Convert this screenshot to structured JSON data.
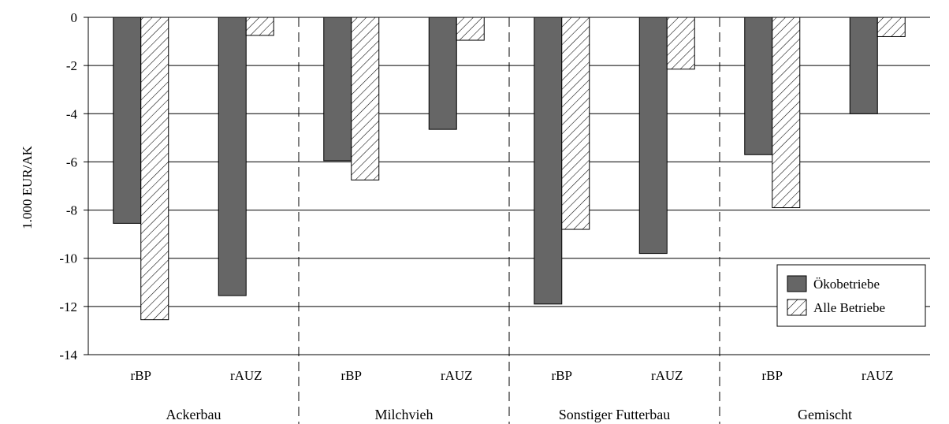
{
  "chart_data": {
    "type": "bar",
    "title": "",
    "xlabel": "",
    "ylabel": "1.000 EUR/AK",
    "ylim": [
      -14,
      0
    ],
    "yticks": [
      0,
      -2,
      -4,
      -6,
      -8,
      -10,
      -12,
      -14
    ],
    "grid": true,
    "legend_position": "bottom-right",
    "groups": [
      "Ackerbau",
      "Milchvieh",
      "Sonstiger Futterbau",
      "Gemischt"
    ],
    "categories": [
      {
        "group": "Ackerbau",
        "label": "rBP"
      },
      {
        "group": "Ackerbau",
        "label": "rAUZ"
      },
      {
        "group": "Milchvieh",
        "label": "rBP"
      },
      {
        "group": "Milchvieh",
        "label": "rAUZ"
      },
      {
        "group": "Sonstiger Futterbau",
        "label": "rBP"
      },
      {
        "group": "Sonstiger Futterbau",
        "label": "rAUZ"
      },
      {
        "group": "Gemischt",
        "label": "rBP"
      },
      {
        "group": "Gemischt",
        "label": "rAUZ"
      }
    ],
    "series": [
      {
        "name": "Ökobetriebe",
        "style": "solid",
        "color": "#666666",
        "values": [
          -8.55,
          -11.55,
          -5.95,
          -4.65,
          -11.9,
          -9.8,
          -5.7,
          -4.0
        ]
      },
      {
        "name": "Alle Betriebe",
        "style": "hatched",
        "color": "#ffffff",
        "values": [
          -12.55,
          -0.75,
          -6.75,
          -0.95,
          -8.8,
          -2.15,
          -7.9,
          -0.8
        ]
      }
    ]
  }
}
